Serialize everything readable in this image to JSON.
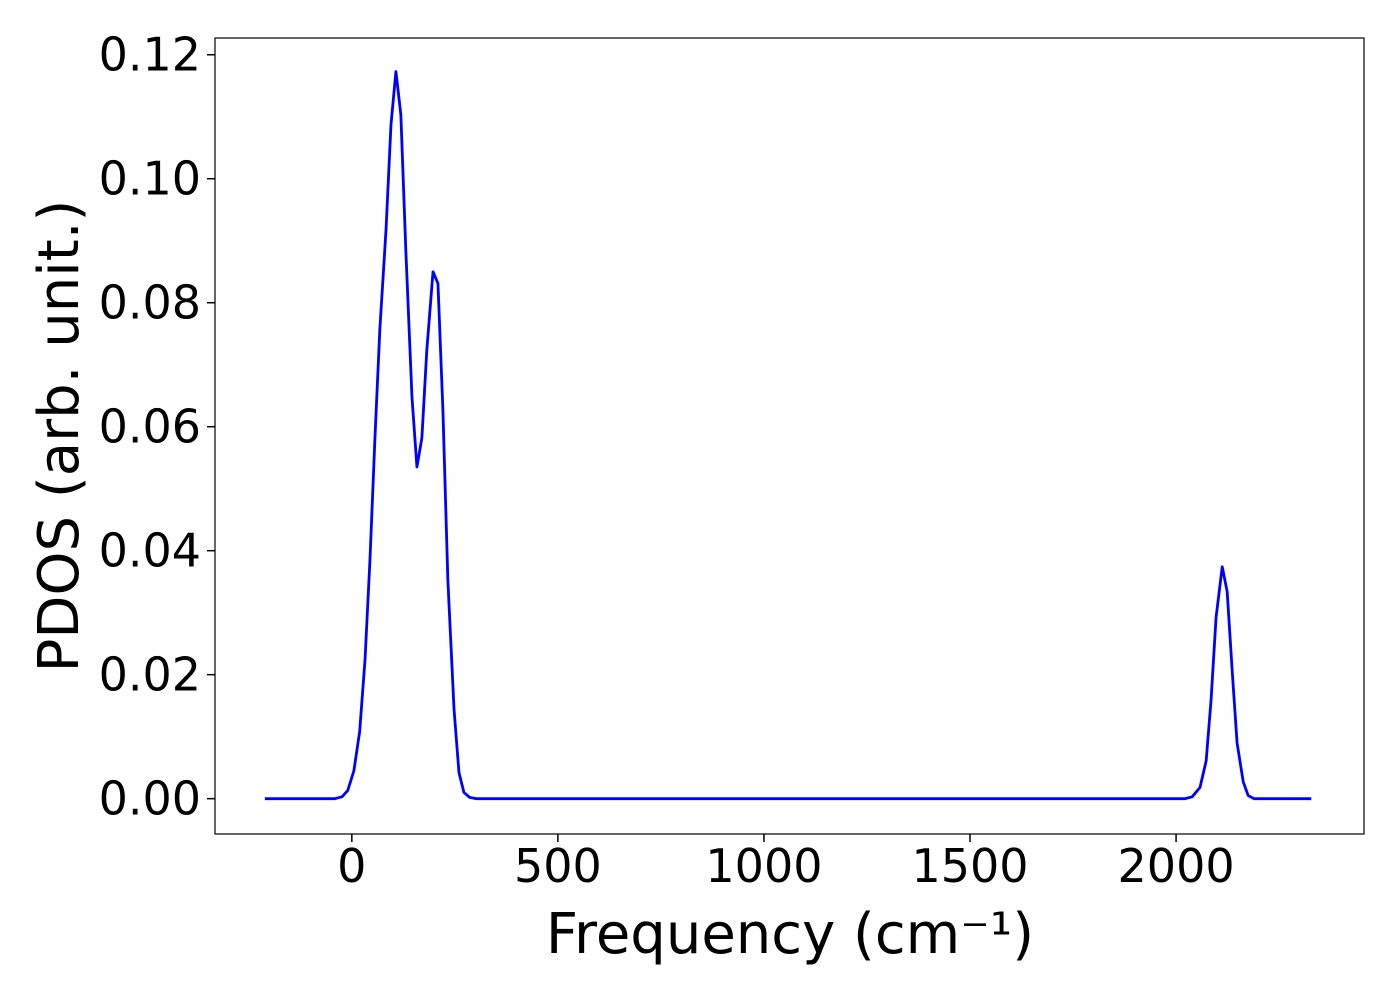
{
  "chart_data": {
    "type": "line",
    "xlabel": "Frequency (cm⁻¹)",
    "ylabel": "PDOS (arb. unit.)",
    "xlim": [
      -332,
      2456
    ],
    "ylim": [
      -0.0057,
      0.1227
    ],
    "xticks": [
      0,
      500,
      1000,
      1500,
      2000
    ],
    "yticks": [
      {
        "value": 0,
        "label": "0.00"
      },
      {
        "value": 0.02,
        "label": "0.02"
      },
      {
        "value": 0.04,
        "label": "0.04"
      },
      {
        "value": 0.06,
        "label": "0.06"
      },
      {
        "value": 0.08,
        "label": "0.08"
      },
      {
        "value": 0.1,
        "label": "0.10"
      },
      {
        "value": 0.12,
        "label": "0.12"
      }
    ],
    "series": [
      {
        "color": "#0000ff",
        "x": [
          -211,
          -41,
          -24,
          -10,
          5,
          19,
          32,
          44,
          56,
          68,
          83,
          95,
          107,
          119,
          131,
          146,
          158,
          170,
          182,
          197,
          209,
          221,
          233,
          248,
          260,
          272,
          286,
          301,
          2022,
          2039,
          2058,
          2073,
          2085,
          2097,
          2112,
          2124,
          2136,
          2148,
          2163,
          2175,
          2189,
          2328
        ],
        "values": [
          0,
          0,
          0.0003,
          0.0013,
          0.0045,
          0.0108,
          0.0224,
          0.0385,
          0.058,
          0.0757,
          0.0918,
          0.1087,
          0.1173,
          0.1103,
          0.0885,
          0.0647,
          0.0535,
          0.0582,
          0.0724,
          0.085,
          0.0831,
          0.0627,
          0.0353,
          0.0144,
          0.0042,
          0.001,
          0.0002,
          0,
          0,
          0.0003,
          0.0018,
          0.0061,
          0.016,
          0.0292,
          0.0374,
          0.0334,
          0.0208,
          0.009,
          0.0027,
          0.0005,
          0,
          0
        ]
      }
    ]
  }
}
